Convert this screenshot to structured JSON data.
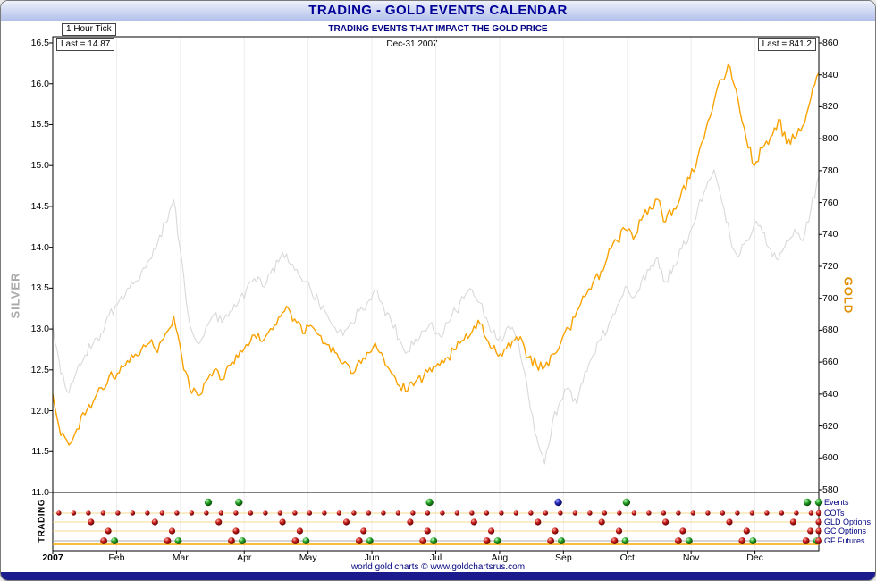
{
  "window": {
    "title": "TRADING - GOLD EVENTS CALENDAR",
    "tick_label": "1 Hour Tick",
    "date_label": "Dec-31  2007",
    "silver_last_label": "Last = 14.87",
    "gold_last_label": "Last = 841.2",
    "footer": "world gold charts © www.goldchartsrus.com"
  },
  "colors": {
    "gold_line": "#f9a200",
    "silver_line": "#d9d9d9",
    "title_text": "#000099",
    "navy_text": "#000080",
    "event_red": "#b01010",
    "event_green": "#1e8c1e",
    "event_blue": "#20209a"
  },
  "chart_data": {
    "type": "line",
    "title": "TRADING - GOLD EVENTS CALENDAR",
    "subtitle": "TRADING EVENTS THAT IMPACT THE GOLD PRICE",
    "timeframe": "1 Hour Tick",
    "x_range": [
      "Jan-2007",
      "Dec-31 2007"
    ],
    "x_labels": [
      "2007",
      "Feb",
      "Mar",
      "Apr",
      "May",
      "Jun",
      "Jul",
      "Aug",
      "Sep",
      "Oct",
      "Nov",
      "Dec"
    ],
    "grid": "faint monthly verticals",
    "left_axis": {
      "title": "SILVER",
      "range": [
        11.0,
        16.5
      ],
      "last": 14.87,
      "ticks": [
        "16.5",
        "16.0",
        "15.5",
        "15.0",
        "14.5",
        "14.0",
        "13.5",
        "13.0",
        "12.5",
        "12.0",
        "11.5",
        "11.0"
      ]
    },
    "right_axis": {
      "title": "GOLD",
      "range": [
        580,
        860
      ],
      "last": 841.2,
      "ticks": [
        "860",
        "840",
        "820",
        "800",
        "780",
        "760",
        "740",
        "720",
        "700",
        "680",
        "660",
        "640",
        "620",
        "600",
        "580"
      ]
    },
    "series": [
      {
        "name": "Silver",
        "axis": "left",
        "color": "#d9d9d9",
        "values": [
          13.05,
          12.45,
          12.22,
          12.5,
          12.68,
          12.82,
          12.95,
          13.18,
          13.3,
          13.42,
          13.55,
          13.7,
          13.85,
          14.05,
          14.3,
          14.58,
          13.85,
          13.05,
          12.82,
          13.02,
          13.18,
          13.08,
          13.22,
          13.32,
          13.48,
          13.62,
          13.52,
          13.68,
          13.82,
          13.92,
          13.72,
          13.58,
          13.48,
          13.32,
          13.18,
          13.02,
          12.92,
          13.08,
          13.22,
          13.32,
          13.48,
          13.28,
          13.08,
          12.88,
          12.72,
          12.88,
          12.98,
          13.08,
          12.92,
          13.08,
          13.22,
          13.38,
          13.48,
          13.32,
          13.08,
          12.88,
          12.92,
          13.02,
          12.68,
          12.18,
          11.68,
          11.35,
          11.88,
          12.12,
          12.28,
          12.08,
          12.48,
          12.68,
          12.88,
          13.08,
          13.28,
          13.52,
          13.38,
          13.58,
          13.72,
          13.88,
          13.58,
          13.78,
          13.98,
          14.18,
          14.48,
          14.72,
          14.95,
          14.55,
          14.12,
          13.88,
          14.08,
          14.28,
          14.18,
          13.98,
          13.85,
          14.08,
          14.22,
          14.08,
          14.45,
          14.87
        ]
      },
      {
        "name": "Gold",
        "axis": "right",
        "color": "#f9a200",
        "values": [
          640,
          614,
          608,
          618,
          627,
          635,
          644,
          651,
          653,
          658,
          663,
          668,
          672,
          666,
          678,
          689,
          664,
          643,
          639,
          648,
          655,
          649,
          658,
          663,
          671,
          677,
          673,
          681,
          688,
          695,
          687,
          678,
          683,
          677,
          671,
          666,
          659,
          653,
          661,
          666,
          672,
          663,
          653,
          645,
          642,
          648,
          651,
          654,
          658,
          663,
          668,
          674,
          679,
          684,
          673,
          666,
          668,
          673,
          676,
          663,
          658,
          657,
          665,
          672,
          681,
          692,
          701,
          710,
          717,
          731,
          736,
          743,
          737,
          749,
          757,
          762,
          748,
          756,
          767,
          775,
          789,
          806,
          823,
          837,
          845,
          824,
          800,
          783,
          794,
          801,
          812,
          797,
          800,
          808,
          825,
          841.2
        ]
      }
    ],
    "events": {
      "panel_title": "TRADING",
      "rows": [
        {
          "label": "Events",
          "marker": "green",
          "dots": [
            {
              "t": 0.203,
              "c": "green"
            },
            {
              "t": 0.243,
              "c": "green"
            },
            {
              "t": 0.492,
              "c": "green"
            },
            {
              "t": 0.66,
              "c": "blue"
            },
            {
              "t": 0.749,
              "c": "green"
            },
            {
              "t": 0.985,
              "c": "green"
            }
          ]
        },
        {
          "label": "COTs",
          "marker": "red",
          "pattern": {
            "type": "even",
            "count": 52,
            "start": 0.008,
            "end": 0.99,
            "c": "red"
          }
        },
        {
          "label": "GLD Options",
          "marker": "red",
          "pattern": {
            "type": "monthly",
            "offset": 0.6,
            "c": "red"
          }
        },
        {
          "label": "GC Options",
          "marker": "red",
          "pattern": {
            "type": "monthly",
            "offset": 0.87,
            "c": "red"
          }
        },
        {
          "label": "GF Futures",
          "marker": "red",
          "pattern": {
            "type": "monthly_pair",
            "offset": 0.8,
            "gap": 0.014,
            "c1": "red",
            "c2": "green"
          }
        }
      ]
    }
  }
}
